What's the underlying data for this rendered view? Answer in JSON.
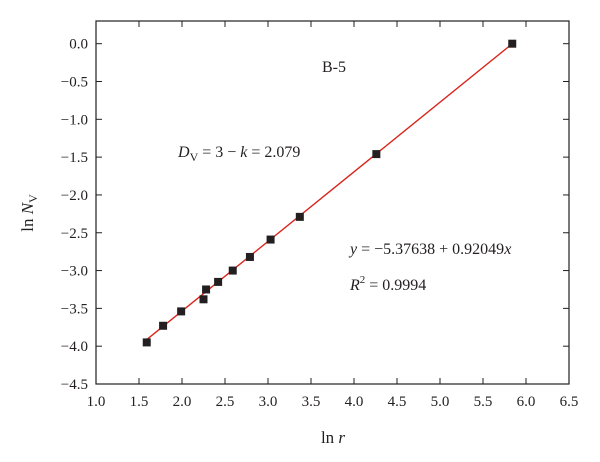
{
  "chart_data": {
    "type": "scatter",
    "xlabel": {
      "prefix": "ln",
      "var": "r"
    },
    "ylabel": {
      "prefix": "ln",
      "var": "N",
      "sub": "V"
    },
    "xlim": [
      1.0,
      6.5
    ],
    "ylim": [
      -4.5,
      0.3
    ],
    "x_ticks": [
      1.0,
      1.5,
      2.0,
      2.5,
      3.0,
      3.5,
      4.0,
      4.5,
      5.0,
      5.5,
      6.0,
      6.5
    ],
    "x_tick_labels": [
      "1.0",
      "1.5",
      "2.0",
      "2.5",
      "3.0",
      "3.5",
      "4.0",
      "4.5",
      "5.0",
      "5.5",
      "6.0",
      "6.5"
    ],
    "y_ticks": [
      0.0,
      -0.5,
      -1.0,
      -1.5,
      -2.0,
      -2.5,
      -3.0,
      -3.5,
      -4.0,
      -4.5
    ],
    "y_tick_labels": [
      "0.0",
      "−0.5",
      "−1.0",
      "−1.5",
      "−2.0",
      "−2.5",
      "−3.0",
      "−3.5",
      "−4.0",
      "−4.5"
    ],
    "grid": false,
    "points": [
      {
        "x": 1.59,
        "y": -3.95
      },
      {
        "x": 1.78,
        "y": -3.73
      },
      {
        "x": 1.99,
        "y": -3.54
      },
      {
        "x": 2.25,
        "y": -3.38
      },
      {
        "x": 2.28,
        "y": -3.25
      },
      {
        "x": 2.42,
        "y": -3.15
      },
      {
        "x": 2.59,
        "y": -3.0
      },
      {
        "x": 2.79,
        "y": -2.82
      },
      {
        "x": 3.03,
        "y": -2.59
      },
      {
        "x": 3.37,
        "y": -2.29
      },
      {
        "x": 4.26,
        "y": -1.46
      },
      {
        "x": 5.84,
        "y": 0.0
      }
    ],
    "fit_line": {
      "x_start": 1.59,
      "x_end": 5.84,
      "intercept": -5.37638,
      "slope": 0.92049
    },
    "annotations": {
      "sample": "B-5",
      "dim": {
        "d": "D",
        "d_sub": "V",
        "mid": " = 3 − ",
        "k": "k",
        "val": " = 2.079"
      },
      "equation": {
        "y": "y",
        "mid": " = −5.37638 + 0.92049",
        "x": "x"
      },
      "r2": {
        "r": "R",
        "sup": "2",
        "val": " = 0.9994"
      }
    },
    "colors": {
      "marker": "#231f20",
      "fit_line": "#d9261c",
      "axis": "#231f20"
    }
  }
}
